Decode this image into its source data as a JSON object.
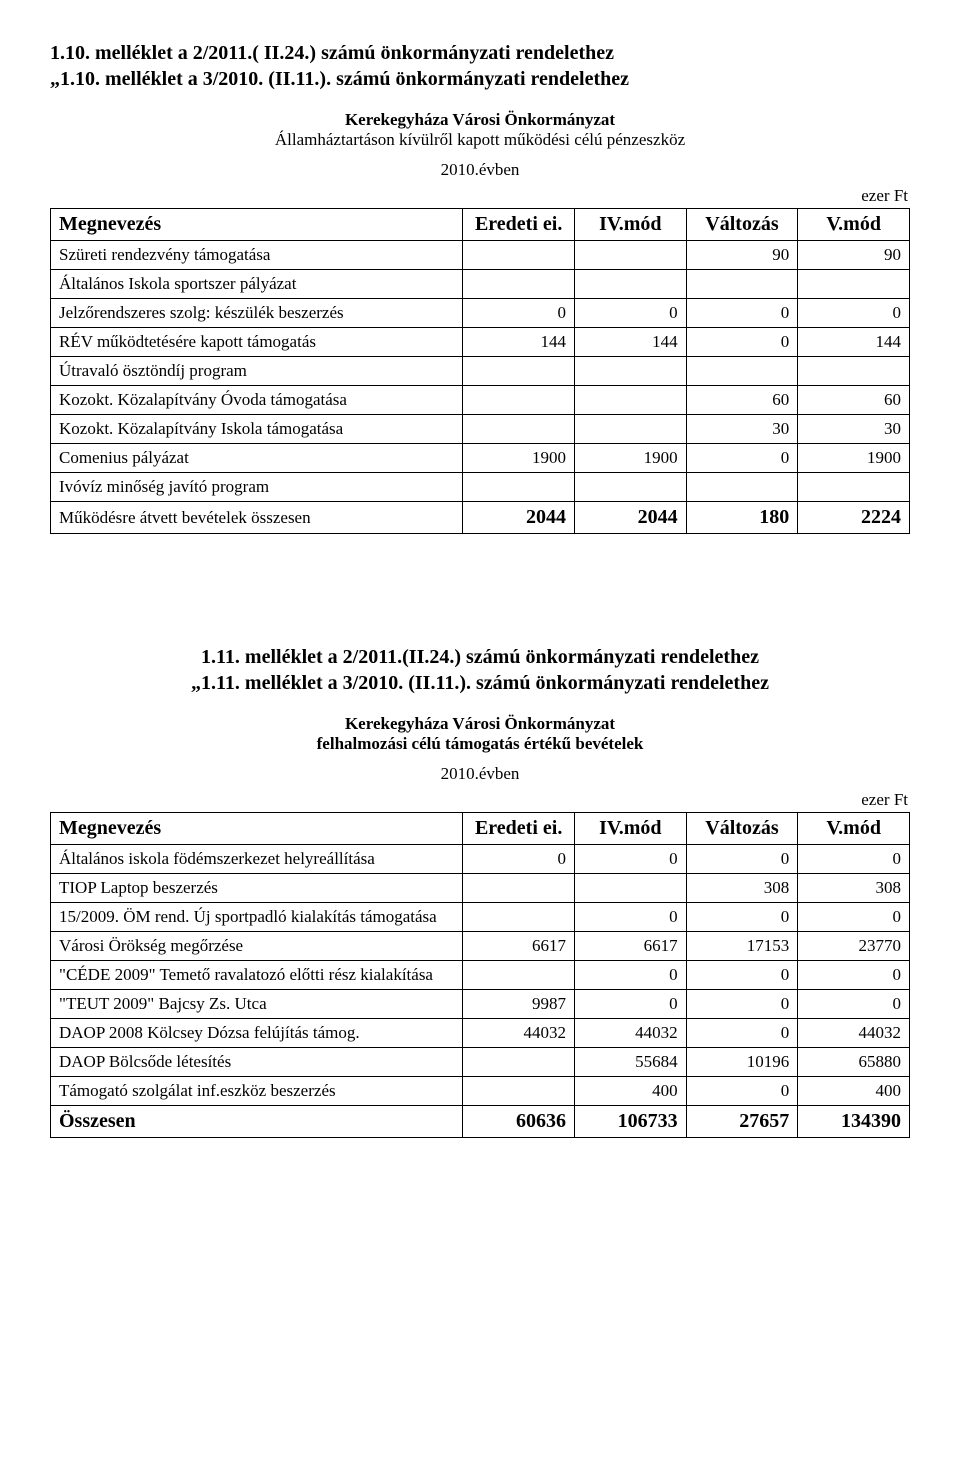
{
  "section1": {
    "heading": "1.10. melléklet a 2/2011.( II.24.) számú önkormányzati rendelethez\n„1.10. melléklet a 3/2010. (II.11.). számú önkormányzati rendelethez",
    "subtitle_bold": "Kerekegyháza Városi Önkormányzat",
    "subtitle_plain": "Államháztartáson kívülről kapott működési célú pénzeszköz",
    "year": "2010.évben",
    "unit": "ezer Ft",
    "columns": {
      "c0": "Megnevezés",
      "c1": "Eredeti ei.",
      "c2": "IV.mód",
      "c3": "Változás",
      "c4": "V.mód"
    },
    "rows": [
      {
        "label": "Szüreti rendezvény támogatása",
        "v1": "",
        "v2": "",
        "v3": "90",
        "v4": "90"
      },
      {
        "label": "Általános Iskola sportszer pályázat",
        "v1": "",
        "v2": "",
        "v3": "",
        "v4": ""
      },
      {
        "label": "Jelzőrendszeres szolg: készülék beszerzés",
        "v1": "0",
        "v2": "0",
        "v3": "0",
        "v4": "0"
      },
      {
        "label": "RÉV működtetésére kapott támogatás",
        "v1": "144",
        "v2": "144",
        "v3": "0",
        "v4": "144"
      },
      {
        "label": "Útravaló ösztöndíj program",
        "v1": "",
        "v2": "",
        "v3": "",
        "v4": ""
      },
      {
        "label": "Kozokt. Közalapítvány Óvoda támogatása",
        "v1": "",
        "v2": "",
        "v3": "60",
        "v4": "60"
      },
      {
        "label": "Kozokt. Közalapítvány Iskola támogatása",
        "v1": "",
        "v2": "",
        "v3": "30",
        "v4": "30"
      },
      {
        "label": "Comenius pályázat",
        "v1": "1900",
        "v2": "1900",
        "v3": "0",
        "v4": "1900"
      },
      {
        "label": "Ivóvíz minőség javító program",
        "v1": "",
        "v2": "",
        "v3": "",
        "v4": ""
      }
    ],
    "totals": {
      "label": "Működésre átvett bevételek összesen",
      "v1": "2044",
      "v2": "2044",
      "v3": "180",
      "v4": "2224",
      "label_bold": false
    }
  },
  "section2": {
    "heading": "1.11. melléklet a 2/2011.(II.24.) számú önkormányzati rendelethez\n„1.11. melléklet a 3/2010. (II.11.). számú önkormányzati rendelethez",
    "subtitle_bold": "Kerekegyháza Városi Önkormányzat\nfelhalmozási célú támogatás értékű bevételek",
    "subtitle_plain": "",
    "year": "2010.évben",
    "unit": "ezer Ft",
    "columns": {
      "c0": "Megnevezés",
      "c1": "Eredeti ei.",
      "c2": "IV.mód",
      "c3": "Változás",
      "c4": "V.mód"
    },
    "rows": [
      {
        "label": "Általános iskola födémszerkezet helyreállítása",
        "v1": "0",
        "v2": "0",
        "v3": "0",
        "v4": "0"
      },
      {
        "label": "TIOP Laptop beszerzés",
        "v1": "",
        "v2": "",
        "v3": "308",
        "v4": "308"
      },
      {
        "label": "15/2009. ÖM rend. Új sportpadló kialakítás támogatása",
        "v1": "",
        "v2": "0",
        "v3": "0",
        "v4": "0"
      },
      {
        "label": "Városi Örökség megőrzése",
        "v1": "6617",
        "v2": "6617",
        "v3": "17153",
        "v4": "23770"
      },
      {
        "label": "\"CÉDE 2009\" Temető ravalatozó előtti rész kialakítása",
        "v1": "",
        "v2": "0",
        "v3": "0",
        "v4": "0"
      },
      {
        "label": "\"TEUT 2009\" Bajcsy Zs. Utca",
        "v1": "9987",
        "v2": "0",
        "v3": "0",
        "v4": "0"
      },
      {
        "label": "DAOP 2008 Kölcsey Dózsa felújítás támog.",
        "v1": "44032",
        "v2": "44032",
        "v3": "0",
        "v4": "44032"
      },
      {
        "label": "DAOP Bölcsőde létesítés",
        "v1": "",
        "v2": "55684",
        "v3": "10196",
        "v4": "65880"
      },
      {
        "label": "Támogató szolgálat inf.eszköz beszerzés",
        "v1": "",
        "v2": "400",
        "v3": "0",
        "v4": "400"
      }
    ],
    "totals": {
      "label": "Összesen",
      "v1": "60636",
      "v2": "106733",
      "v3": "27657",
      "v4": "134390",
      "label_bold": true
    }
  },
  "table_style": {
    "col_widths": [
      "48%",
      "13%",
      "13%",
      "13%",
      "13%"
    ]
  }
}
